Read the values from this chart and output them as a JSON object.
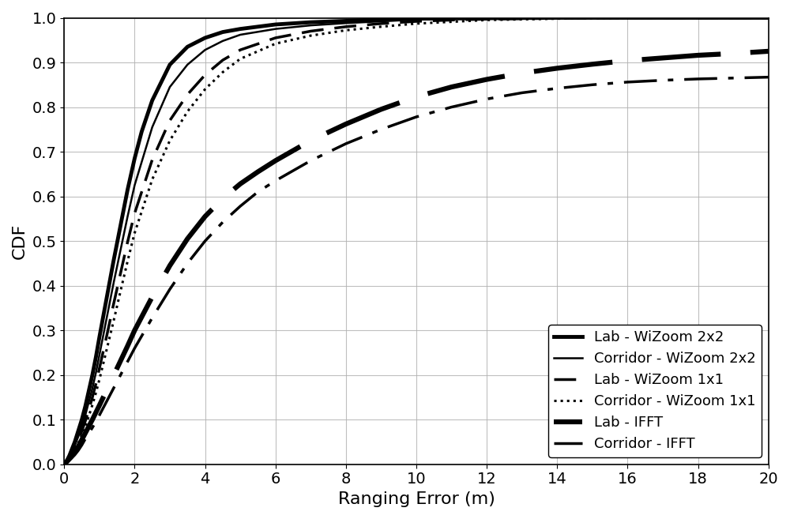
{
  "title": "",
  "xlabel": "Ranging Error (m)",
  "ylabel": "CDF",
  "xlim": [
    0,
    20
  ],
  "ylim": [
    0,
    1
  ],
  "xticks": [
    0,
    2,
    4,
    6,
    8,
    10,
    12,
    14,
    16,
    18,
    20
  ],
  "yticks": [
    0,
    0.1,
    0.2,
    0.3,
    0.4,
    0.5,
    0.6,
    0.7,
    0.8,
    0.9,
    1
  ],
  "background_color": "#ffffff",
  "grid_color": "#b0b0b0",
  "curves": [
    {
      "label": "Lab - WiZoom 2x2",
      "linestyle": "solid",
      "linewidth": 3.5,
      "color": "#000000",
      "x": [
        0,
        0.05,
        0.1,
        0.15,
        0.2,
        0.3,
        0.4,
        0.5,
        0.6,
        0.7,
        0.8,
        0.9,
        1.0,
        1.2,
        1.4,
        1.6,
        1.8,
        2.0,
        2.2,
        2.5,
        3.0,
        3.5,
        4.0,
        4.5,
        5.0,
        6.0,
        7.0,
        8.0,
        9.0,
        10.0,
        12.0,
        14.0,
        16.0,
        18.0,
        20.0
      ],
      "y": [
        0,
        0.005,
        0.012,
        0.02,
        0.03,
        0.05,
        0.075,
        0.1,
        0.13,
        0.165,
        0.2,
        0.24,
        0.285,
        0.37,
        0.455,
        0.535,
        0.615,
        0.685,
        0.745,
        0.815,
        0.895,
        0.935,
        0.955,
        0.968,
        0.975,
        0.985,
        0.99,
        0.993,
        0.996,
        0.998,
        0.999,
        1.0,
        1.0,
        1.0,
        1.0
      ]
    },
    {
      "label": "Corridor - WiZoom 2x2",
      "linestyle": "solid",
      "linewidth": 1.8,
      "color": "#000000",
      "x": [
        0,
        0.05,
        0.1,
        0.15,
        0.2,
        0.3,
        0.4,
        0.5,
        0.6,
        0.7,
        0.8,
        0.9,
        1.0,
        1.2,
        1.4,
        1.6,
        1.8,
        2.0,
        2.5,
        3.0,
        3.5,
        4.0,
        4.5,
        5.0,
        6.0,
        7.0,
        8.0,
        9.0,
        10.0,
        12.0,
        14.0,
        16.0,
        18.0,
        20.0
      ],
      "y": [
        0,
        0.004,
        0.01,
        0.017,
        0.025,
        0.042,
        0.062,
        0.085,
        0.11,
        0.14,
        0.17,
        0.205,
        0.245,
        0.325,
        0.405,
        0.48,
        0.555,
        0.625,
        0.755,
        0.845,
        0.895,
        0.928,
        0.948,
        0.962,
        0.975,
        0.983,
        0.988,
        0.992,
        0.996,
        0.999,
        1.0,
        1.0,
        1.0,
        1.0
      ]
    },
    {
      "label": "Lab - WiZoom 1x1",
      "linestyle": "dashed",
      "linewidth": 2.5,
      "color": "#000000",
      "dash_pattern": [
        8,
        4
      ],
      "x": [
        0,
        0.05,
        0.1,
        0.15,
        0.2,
        0.3,
        0.4,
        0.5,
        0.6,
        0.7,
        0.8,
        0.9,
        1.0,
        1.2,
        1.4,
        1.6,
        1.8,
        2.0,
        2.5,
        3.0,
        3.5,
        4.0,
        4.5,
        5.0,
        6.0,
        7.0,
        8.0,
        9.0,
        10.0,
        11.0,
        12.0,
        14.0,
        16.0,
        18.0,
        20.0
      ],
      "y": [
        0,
        0.003,
        0.008,
        0.014,
        0.021,
        0.036,
        0.054,
        0.074,
        0.097,
        0.122,
        0.15,
        0.18,
        0.215,
        0.285,
        0.358,
        0.428,
        0.498,
        0.562,
        0.682,
        0.77,
        0.828,
        0.872,
        0.905,
        0.928,
        0.955,
        0.97,
        0.98,
        0.987,
        0.992,
        0.995,
        0.997,
        0.999,
        1.0,
        1.0,
        1.0
      ]
    },
    {
      "label": "Corridor - WiZoom 1x1",
      "linestyle": "dotted",
      "linewidth": 2.2,
      "color": "#000000",
      "x": [
        0,
        0.05,
        0.1,
        0.15,
        0.2,
        0.3,
        0.4,
        0.5,
        0.6,
        0.7,
        0.8,
        0.9,
        1.0,
        1.2,
        1.4,
        1.6,
        1.8,
        2.0,
        2.5,
        3.0,
        3.5,
        4.0,
        4.5,
        5.0,
        6.0,
        7.0,
        8.0,
        9.0,
        10.0,
        11.0,
        12.0,
        14.0,
        16.0,
        18.0,
        20.0
      ],
      "y": [
        0,
        0.003,
        0.007,
        0.012,
        0.018,
        0.031,
        0.047,
        0.065,
        0.085,
        0.108,
        0.133,
        0.16,
        0.19,
        0.255,
        0.32,
        0.388,
        0.455,
        0.518,
        0.638,
        0.725,
        0.79,
        0.84,
        0.878,
        0.908,
        0.942,
        0.96,
        0.972,
        0.98,
        0.987,
        0.991,
        0.995,
        0.998,
        1.0,
        1.0,
        1.0
      ]
    },
    {
      "label": "Lab - IFFT",
      "linestyle": "dashed",
      "linewidth": 4.5,
      "color": "#000000",
      "dash_pattern": [
        16,
        6
      ],
      "x": [
        0,
        0.1,
        0.2,
        0.3,
        0.4,
        0.5,
        0.6,
        0.8,
        1.0,
        1.2,
        1.5,
        1.8,
        2.0,
        2.5,
        3.0,
        3.5,
        4.0,
        4.5,
        5.0,
        5.5,
        6.0,
        7.0,
        8.0,
        9.0,
        10.0,
        11.0,
        12.0,
        13.0,
        14.0,
        15.0,
        16.0,
        17.0,
        18.0,
        19.0,
        20.0
      ],
      "y": [
        0,
        0.008,
        0.017,
        0.028,
        0.04,
        0.055,
        0.07,
        0.1,
        0.132,
        0.165,
        0.215,
        0.265,
        0.3,
        0.375,
        0.445,
        0.505,
        0.555,
        0.595,
        0.628,
        0.655,
        0.68,
        0.725,
        0.762,
        0.795,
        0.823,
        0.845,
        0.862,
        0.876,
        0.887,
        0.896,
        0.904,
        0.91,
        0.916,
        0.92,
        0.925
      ]
    },
    {
      "label": "Corridor - IFFT",
      "linestyle": "dashdot",
      "linewidth": 2.5,
      "color": "#000000",
      "dash_pattern": [
        12,
        4,
        2,
        4
      ],
      "x": [
        0,
        0.1,
        0.2,
        0.3,
        0.4,
        0.5,
        0.6,
        0.8,
        1.0,
        1.2,
        1.5,
        1.8,
        2.0,
        2.5,
        3.0,
        3.5,
        4.0,
        4.5,
        5.0,
        5.5,
        6.0,
        7.0,
        8.0,
        9.0,
        10.0,
        11.0,
        12.0,
        13.0,
        14.0,
        15.0,
        16.0,
        17.0,
        18.0,
        19.0,
        20.0
      ],
      "y": [
        0,
        0.006,
        0.013,
        0.021,
        0.031,
        0.043,
        0.057,
        0.082,
        0.11,
        0.14,
        0.185,
        0.23,
        0.26,
        0.328,
        0.392,
        0.45,
        0.5,
        0.542,
        0.578,
        0.61,
        0.635,
        0.68,
        0.718,
        0.75,
        0.778,
        0.8,
        0.818,
        0.832,
        0.842,
        0.85,
        0.856,
        0.86,
        0.863,
        0.865,
        0.867
      ]
    }
  ],
  "legend_loc": "lower right",
  "figsize": [
    10.0,
    6.57
  ],
  "dpi": 100,
  "xlabel_fontsize": 16,
  "ylabel_fontsize": 16,
  "tick_fontsize": 14,
  "legend_fontsize": 13
}
